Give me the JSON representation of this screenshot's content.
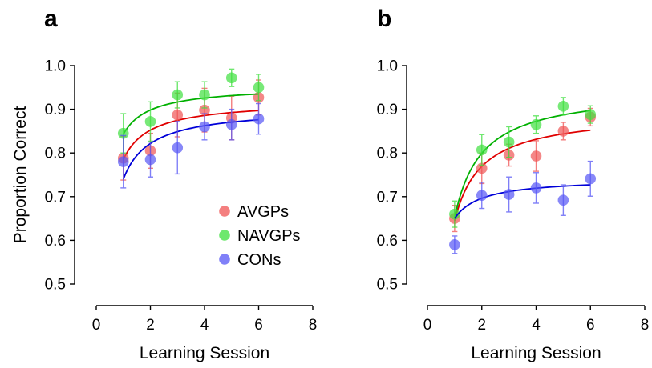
{
  "chart_data": [
    {
      "type": "scatter",
      "panel_label": "a",
      "xlabel": "Learning Session",
      "ylabel": "Proportion Correct",
      "xlim": [
        0,
        8
      ],
      "ylim": [
        0.5,
        1.0
      ],
      "xticks": [
        "0",
        "2",
        "4",
        "6",
        "8"
      ],
      "yticks": [
        "0.5",
        "0.6",
        "0.7",
        "0.8",
        "0.9",
        "1.0"
      ],
      "legend": "inside",
      "series": [
        {
          "name": "AVGPs",
          "color": "#f05454",
          "fit_color": "#e00000",
          "x": [
            1,
            2,
            3,
            4,
            5,
            6
          ],
          "y": [
            0.788,
            0.805,
            0.887,
            0.898,
            0.88,
            0.927
          ],
          "err": [
            0.05,
            0.04,
            0.05,
            0.05,
            0.05,
            0.04
          ],
          "fit_start": 0.785,
          "fit_end": 0.897
        },
        {
          "name": "NAVGPs",
          "color": "#3ee03e",
          "fit_color": "#00b000",
          "x": [
            1,
            2,
            3,
            4,
            5,
            6
          ],
          "y": [
            0.845,
            0.872,
            0.933,
            0.933,
            0.972,
            0.95
          ],
          "err": [
            0.045,
            0.045,
            0.03,
            0.03,
            0.02,
            0.03
          ],
          "fit_start": 0.843,
          "fit_end": 0.935
        },
        {
          "name": "CONs",
          "color": "#5555f5",
          "fit_color": "#0000d8",
          "x": [
            1,
            2,
            3,
            4,
            5,
            6
          ],
          "y": [
            0.78,
            0.785,
            0.812,
            0.86,
            0.865,
            0.878
          ],
          "err": [
            0.06,
            0.04,
            0.06,
            0.03,
            0.035,
            0.035
          ],
          "fit_start": 0.74,
          "fit_end": 0.876
        }
      ]
    },
    {
      "type": "scatter",
      "panel_label": "b",
      "xlabel": "Learning Session",
      "ylabel": "",
      "xlim": [
        0,
        8
      ],
      "ylim": [
        0.5,
        1.0
      ],
      "xticks": [
        "0",
        "2",
        "4",
        "6",
        "8"
      ],
      "yticks": [
        "0.5",
        "0.6",
        "0.7",
        "0.8",
        "0.9",
        "1.0"
      ],
      "series": [
        {
          "name": "AVGPs",
          "color": "#f05454",
          "fit_color": "#e00000",
          "x": [
            1,
            2,
            3,
            4,
            5,
            6
          ],
          "y": [
            0.65,
            0.765,
            0.795,
            0.793,
            0.85,
            0.882
          ],
          "err": [
            0.03,
            0.035,
            0.025,
            0.035,
            0.02,
            0.02
          ],
          "fit_start": 0.645,
          "fit_end": 0.852
        },
        {
          "name": "NAVGPs",
          "color": "#3ee03e",
          "fit_color": "#00b000",
          "x": [
            1,
            2,
            3,
            4,
            5,
            6
          ],
          "y": [
            0.66,
            0.807,
            0.825,
            0.865,
            0.907,
            0.888
          ],
          "err": [
            0.03,
            0.035,
            0.035,
            0.02,
            0.02,
            0.02
          ],
          "fit_start": 0.652,
          "fit_end": 0.897
        },
        {
          "name": "CONs",
          "color": "#5555f5",
          "fit_color": "#0000d8",
          "x": [
            1,
            2,
            3,
            4,
            5,
            6
          ],
          "y": [
            0.59,
            0.703,
            0.705,
            0.72,
            0.692,
            0.741
          ],
          "err": [
            0.02,
            0.03,
            0.04,
            0.035,
            0.035,
            0.04
          ],
          "fit_start": 0.65,
          "fit_end": 0.727
        }
      ]
    }
  ]
}
